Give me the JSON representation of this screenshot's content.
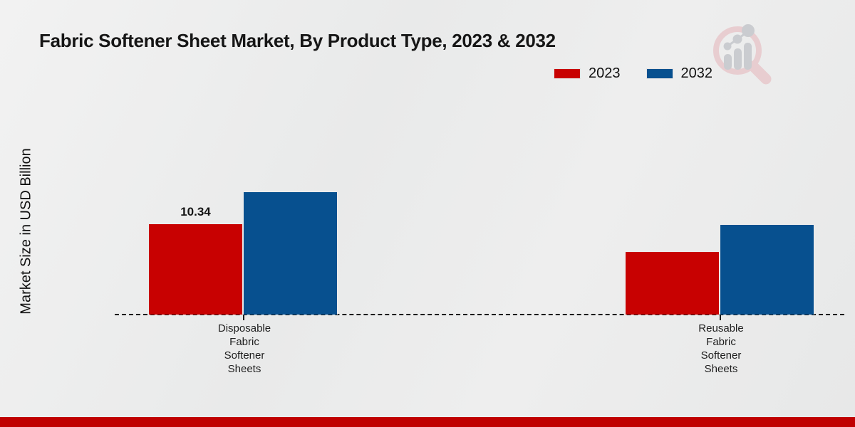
{
  "title": "Fabric Softener Sheet Market, By Product Type, 2023 & 2032",
  "legend": [
    {
      "label": "2023",
      "color": "#c80101"
    },
    {
      "label": "2032",
      "color": "#07508f"
    }
  ],
  "chart_data": {
    "type": "bar",
    "title": "Fabric Softener Sheet Market, By Product Type, 2023 & 2032",
    "xlabel": "",
    "ylabel": "Market Size in USD Billion",
    "categories": [
      "Disposable\nFabric\nSoftener\nSheets",
      "Reusable\nFabric\nSoftener\nSheets"
    ],
    "series": [
      {
        "name": "2023",
        "color": "#c80101",
        "values": [
          10.34,
          7.18
        ],
        "data_labels": [
          "10.34",
          ""
        ]
      },
      {
        "name": "2032",
        "color": "#07508f",
        "values": [
          13.95,
          10.24
        ],
        "data_labels": [
          "",
          ""
        ]
      }
    ],
    "value_axis_visible": false,
    "gridlines": false,
    "zero_line_style": "dashed",
    "legend_position": "top-right",
    "note": "Only the 10.34 value is printed on the chart; other values estimated from bar heights."
  },
  "footer": {
    "accent_color": "#c00000"
  },
  "watermark_icon": "magnifier-bar-chart-logo"
}
